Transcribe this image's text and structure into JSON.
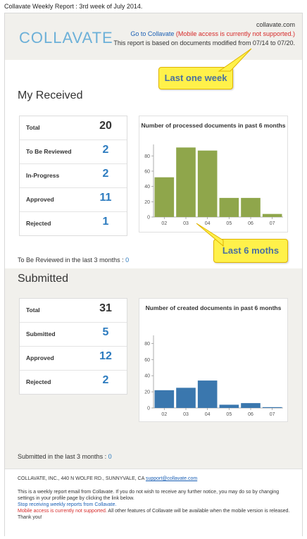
{
  "email_subject": "Collavate Weekly Report : 3rd week of July 2014.",
  "header": {
    "logo_text": "COLLAVATE",
    "domain": "collavate.com",
    "go_link": "Go to Collavate",
    "mobile_warning": "(Mobile access is currently not supported.)",
    "note": "This report is based on documents modified from 07/14 to 07/20."
  },
  "received": {
    "title": "My Received",
    "stats": [
      {
        "label": "Total",
        "value": "20"
      },
      {
        "label": "To Be Reviewed",
        "value": "2"
      },
      {
        "label": "In-Progress",
        "value": "2"
      },
      {
        "label": "Approved",
        "value": "11"
      },
      {
        "label": "Rejected",
        "value": "1"
      }
    ],
    "footer_label": "To Be Reviewed in the last 3 months :",
    "footer_value": "0"
  },
  "submitted": {
    "title": "Submitted",
    "stats": [
      {
        "label": "Total",
        "value": "31"
      },
      {
        "label": "Submitted",
        "value": "5"
      },
      {
        "label": "Approved",
        "value": "12"
      },
      {
        "label": "Rejected",
        "value": "2"
      }
    ],
    "footer_label": "Submitted in the last 3 months :",
    "footer_value": "0"
  },
  "callouts": {
    "week": "Last one week",
    "months": "Last 6 moths"
  },
  "chart_data": [
    {
      "type": "bar",
      "title": "Number of processed documents in past 6 months",
      "categories": [
        "02",
        "03",
        "04",
        "05",
        "06",
        "07"
      ],
      "values": [
        52,
        91,
        87,
        25,
        25,
        4
      ],
      "yticks": [
        0,
        20,
        40,
        60,
        80
      ],
      "ylim": [
        0,
        95
      ],
      "color": "#8fa64b"
    },
    {
      "type": "bar",
      "title": "Number of created documents in past 6 months",
      "categories": [
        "02",
        "03",
        "04",
        "05",
        "06",
        "07"
      ],
      "values": [
        22,
        25,
        34,
        4,
        6,
        1
      ],
      "yticks": [
        0,
        20,
        40,
        60,
        80
      ],
      "ylim": [
        0,
        90
      ],
      "color": "#3a77ae"
    }
  ],
  "footer": {
    "address": "COLLAVATE, INC., 440 N WOLFE RD., SUNNYVALE, CA",
    "email": "support@collavate.com",
    "body1": "This is a weekly report email from Collavate. If you do not wish to receive any further notice, you may do so by changing settings in your profile page by clicking the link below.",
    "stop_link": "Stop receiving weekly reports from Collavate.",
    "mobile_warning": "Mobile access is currently not supported.",
    "body2": " All other features of Collavate will be available when the mobile version is released. Thank you!"
  },
  "colors": {
    "header_bg": "#f1f0ec",
    "stat_blue": "#2c7bbf",
    "callout_yellow": "#fff14a"
  }
}
